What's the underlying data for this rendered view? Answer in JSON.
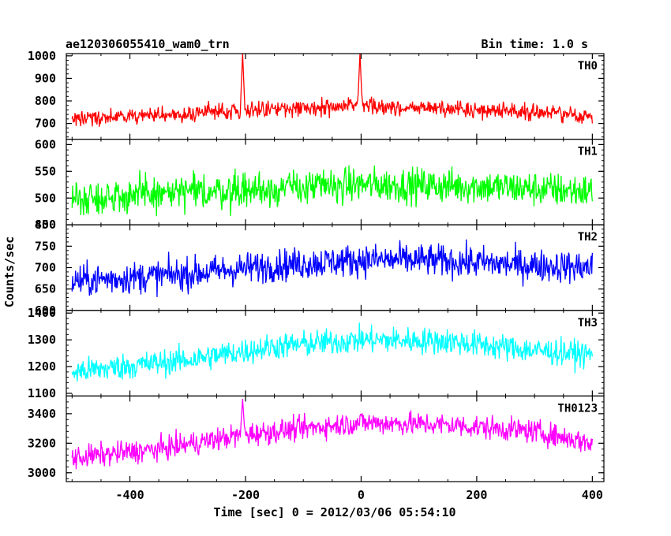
{
  "header": {
    "title": "ae120306055410_wam0_trn",
    "bin_time": "Bin time: 1.0 s"
  },
  "chart_data": {
    "type": "line",
    "xlabel": "Time [sec] 0 = 2012/03/06 05:54:10",
    "ylabel": "Counts/sec",
    "xlim": [
      -510,
      420
    ],
    "x_ticks": [
      -400,
      -200,
      0,
      200,
      400
    ],
    "x_range": [
      -500,
      400
    ],
    "bin_time_sec": 1.0,
    "panels": [
      {
        "name": "TH0",
        "color": "#ff0000",
        "ylim": [
          630,
          1010
        ],
        "yticks": [
          700,
          800,
          900,
          1000
        ],
        "baseline_profile": [
          [
            -500,
            725
          ],
          [
            -350,
            735
          ],
          [
            -200,
            760
          ],
          [
            -100,
            768
          ],
          [
            0,
            775
          ],
          [
            100,
            768
          ],
          [
            200,
            762
          ],
          [
            300,
            752
          ],
          [
            400,
            730
          ]
        ],
        "noise_amplitude": 35,
        "spikes": [
          {
            "x": -205,
            "peak": 1010
          },
          {
            "x": -2,
            "peak": 1010
          }
        ]
      },
      {
        "name": "TH1",
        "color": "#00ff00",
        "ylim": [
          450,
          610
        ],
        "yticks": [
          450,
          500,
          550,
          600
        ],
        "baseline_profile": [
          [
            -500,
            500
          ],
          [
            -300,
            510
          ],
          [
            -100,
            520
          ],
          [
            0,
            525
          ],
          [
            200,
            522
          ],
          [
            400,
            512
          ]
        ],
        "noise_amplitude": 33,
        "spikes": []
      },
      {
        "name": "TH2",
        "color": "#0000ff",
        "ylim": [
          600,
          800
        ],
        "yticks": [
          600,
          650,
          700,
          750,
          800
        ],
        "baseline_profile": [
          [
            -500,
            668
          ],
          [
            -300,
            685
          ],
          [
            -150,
            705
          ],
          [
            0,
            718
          ],
          [
            100,
            718
          ],
          [
            200,
            712
          ],
          [
            300,
            705
          ],
          [
            400,
            700
          ]
        ],
        "noise_amplitude": 38,
        "spikes": []
      },
      {
        "name": "TH3",
        "color": "#00ffff",
        "ylim": [
          1090,
          1410
        ],
        "yticks": [
          1100,
          1200,
          1300,
          1400
        ],
        "baseline_profile": [
          [
            -500,
            1180
          ],
          [
            -300,
            1225
          ],
          [
            -150,
            1275
          ],
          [
            0,
            1300
          ],
          [
            150,
            1295
          ],
          [
            300,
            1260
          ],
          [
            400,
            1245
          ]
        ],
        "noise_amplitude": 50,
        "spikes": []
      },
      {
        "name": "TH0123",
        "color": "#ff00ff",
        "ylim": [
          2940,
          3520
        ],
        "yticks": [
          3000,
          3200,
          3400
        ],
        "baseline_profile": [
          [
            -500,
            3100
          ],
          [
            -350,
            3160
          ],
          [
            -200,
            3260
          ],
          [
            -50,
            3320
          ],
          [
            0,
            3340
          ],
          [
            150,
            3325
          ],
          [
            300,
            3280
          ],
          [
            400,
            3200
          ]
        ],
        "noise_amplitude": 80,
        "spikes": [
          {
            "x": -205,
            "peak": 3500
          }
        ]
      }
    ]
  }
}
